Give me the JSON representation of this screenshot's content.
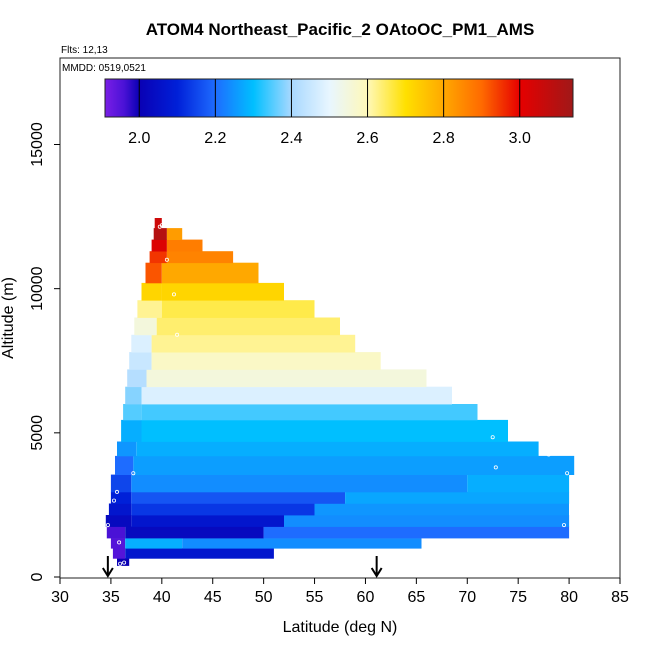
{
  "chart_data": {
    "type": "heatmap",
    "title": "ATOM4 Northeast_Pacific_2 OAtoOC_PM1_AMS",
    "flights_label": "Flts: 12,13",
    "dates_label": "MMDD: 0519,0521",
    "xlabel": "Latitude (deg N)",
    "ylabel": "Altitude (m)",
    "xlim": [
      30,
      85
    ],
    "ylim": [
      0,
      18000
    ],
    "x_ticks": [
      "30",
      "35",
      "40",
      "45",
      "50",
      "55",
      "60",
      "65",
      "70",
      "75",
      "80",
      "85"
    ],
    "y_ticks": [
      "0",
      "5000",
      "10000",
      "15000"
    ],
    "colorbar": {
      "range": [
        1.91,
        3.14
      ],
      "ticks": [
        "2.0",
        "2.2",
        "2.4",
        "2.6",
        "2.8",
        "3.0"
      ],
      "stops": [
        {
          "v": 1.91,
          "c": "#7a1fe6"
        },
        {
          "v": 1.96,
          "c": "#4a12d6"
        },
        {
          "v": 2.0,
          "c": "#0a00b4"
        },
        {
          "v": 2.1,
          "c": "#0020d8"
        },
        {
          "v": 2.2,
          "c": "#1e6cff"
        },
        {
          "v": 2.3,
          "c": "#00bfff"
        },
        {
          "v": 2.4,
          "c": "#a8d8ff"
        },
        {
          "v": 2.5,
          "c": "#e8f6ff"
        },
        {
          "v": 2.6,
          "c": "#fff8b8"
        },
        {
          "v": 2.7,
          "c": "#ffe000"
        },
        {
          "v": 2.8,
          "c": "#ffa800"
        },
        {
          "v": 2.9,
          "c": "#ff6a00"
        },
        {
          "v": 3.0,
          "c": "#e60000"
        },
        {
          "v": 3.14,
          "c": "#a01818"
        }
      ]
    },
    "flight_arrows_x": [
      34.7,
      61.1
    ],
    "rows": [
      {
        "y": [
          400,
          650
        ],
        "segments": [
          [
            35.6,
            36.8,
            2.0
          ]
        ]
      },
      {
        "y": [
          650,
          1000
        ],
        "segments": [
          [
            35.2,
            36.4,
            1.95
          ],
          [
            36.4,
            51.0,
            2.07
          ]
        ]
      },
      {
        "y": [
          1000,
          1350
        ],
        "segments": [
          [
            35.0,
            36.4,
            1.95
          ],
          [
            36.4,
            42.0,
            2.28
          ],
          [
            42.0,
            65.5,
            2.24
          ]
        ]
      },
      {
        "y": [
          1350,
          1750
        ],
        "segments": [
          [
            34.6,
            36.4,
            1.96
          ],
          [
            36.4,
            50.0,
            2.03
          ],
          [
            50.0,
            80.0,
            2.2
          ]
        ]
      },
      {
        "y": [
          1750,
          2150
        ],
        "segments": [
          [
            34.5,
            37.0,
            2.03
          ],
          [
            37.0,
            52.0,
            2.07
          ],
          [
            52.0,
            80.0,
            2.24
          ]
        ]
      },
      {
        "y": [
          2150,
          2550
        ],
        "segments": [
          [
            34.8,
            37.0,
            2.07
          ],
          [
            37.0,
            55.0,
            2.13
          ],
          [
            55.0,
            80.0,
            2.25
          ]
        ]
      },
      {
        "y": [
          2550,
          2950
        ],
        "segments": [
          [
            35.0,
            37.0,
            2.1
          ],
          [
            37.0,
            58.0,
            2.17
          ],
          [
            58.0,
            80.0,
            2.27
          ]
        ]
      },
      {
        "y": [
          2950,
          3550
        ],
        "segments": [
          [
            35.0,
            37.0,
            2.15
          ],
          [
            37.0,
            70.0,
            2.24
          ],
          [
            70.0,
            80.0,
            2.28
          ]
        ]
      },
      {
        "y": [
          3550,
          4200
        ],
        "segments": [
          [
            35.4,
            37.2,
            2.2
          ],
          [
            37.2,
            80.5,
            2.26
          ]
        ]
      },
      {
        "y": [
          4200,
          4700
        ],
        "segments": [
          [
            35.6,
            37.5,
            2.25
          ],
          [
            37.5,
            77.0,
            2.28
          ]
        ]
      },
      {
        "y": [
          4700,
          5450
        ],
        "segments": [
          [
            36.0,
            38.0,
            2.28
          ],
          [
            38.0,
            74.0,
            2.3
          ]
        ]
      },
      {
        "y": [
          5450,
          6000
        ],
        "segments": [
          [
            36.2,
            38.0,
            2.35
          ],
          [
            38.0,
            71.0,
            2.34
          ]
        ]
      },
      {
        "y": [
          6000,
          6600
        ],
        "segments": [
          [
            36.4,
            38.0,
            2.38
          ],
          [
            38.0,
            68.5,
            2.48
          ]
        ]
      },
      {
        "y": [
          6600,
          7200
        ],
        "segments": [
          [
            36.6,
            38.5,
            2.42
          ],
          [
            38.5,
            66.0,
            2.55
          ]
        ]
      },
      {
        "y": [
          7200,
          7800
        ],
        "segments": [
          [
            36.8,
            39.0,
            2.45
          ],
          [
            39.0,
            61.5,
            2.58
          ]
        ]
      },
      {
        "y": [
          7800,
          8400
        ],
        "segments": [
          [
            37.0,
            39.0,
            2.48
          ],
          [
            39.0,
            59.0,
            2.62
          ]
        ]
      },
      {
        "y": [
          8400,
          9000
        ],
        "segments": [
          [
            37.3,
            39.5,
            2.55
          ],
          [
            39.5,
            57.5,
            2.64
          ]
        ]
      },
      {
        "y": [
          9000,
          9600
        ],
        "segments": [
          [
            37.6,
            40.0,
            2.62
          ],
          [
            40.0,
            55.0,
            2.66
          ]
        ]
      },
      {
        "y": [
          9600,
          10200
        ],
        "segments": [
          [
            38.0,
            40.0,
            2.72
          ],
          [
            40.0,
            52.0,
            2.72
          ]
        ]
      },
      {
        "y": [
          10200,
          10900
        ],
        "segments": [
          [
            38.4,
            40.0,
            2.92
          ],
          [
            40.0,
            49.5,
            2.8
          ]
        ]
      },
      {
        "y": [
          10900,
          11300
        ],
        "segments": [
          [
            38.8,
            40.5,
            2.95
          ],
          [
            40.5,
            47.0,
            2.86
          ]
        ]
      },
      {
        "y": [
          11300,
          11700
        ],
        "segments": [
          [
            39.0,
            40.5,
            3.02
          ],
          [
            40.5,
            44.0,
            2.87
          ]
        ]
      },
      {
        "y": [
          11700,
          12100
        ],
        "segments": [
          [
            39.2,
            40.5,
            3.1
          ],
          [
            40.5,
            42.0,
            2.82
          ]
        ]
      },
      {
        "y": [
          12100,
          12450
        ],
        "segments": [
          [
            39.3,
            40.0,
            3.05
          ]
        ]
      }
    ],
    "markers": [
      [
        35.9,
        460
      ],
      [
        36.3,
        500
      ],
      [
        35.8,
        1200
      ],
      [
        34.7,
        1800
      ],
      [
        35.3,
        2650
      ],
      [
        35.6,
        2950
      ],
      [
        37.2,
        3600
      ],
      [
        39.8,
        12150
      ],
      [
        40.0,
        12200
      ],
      [
        40.5,
        11000
      ],
      [
        41.2,
        9800
      ],
      [
        41.5,
        8400
      ],
      [
        72.5,
        4850
      ],
      [
        72.8,
        3800
      ],
      [
        78.0,
        4250
      ],
      [
        79.8,
        3600
      ],
      [
        79.5,
        1800
      ]
    ]
  }
}
